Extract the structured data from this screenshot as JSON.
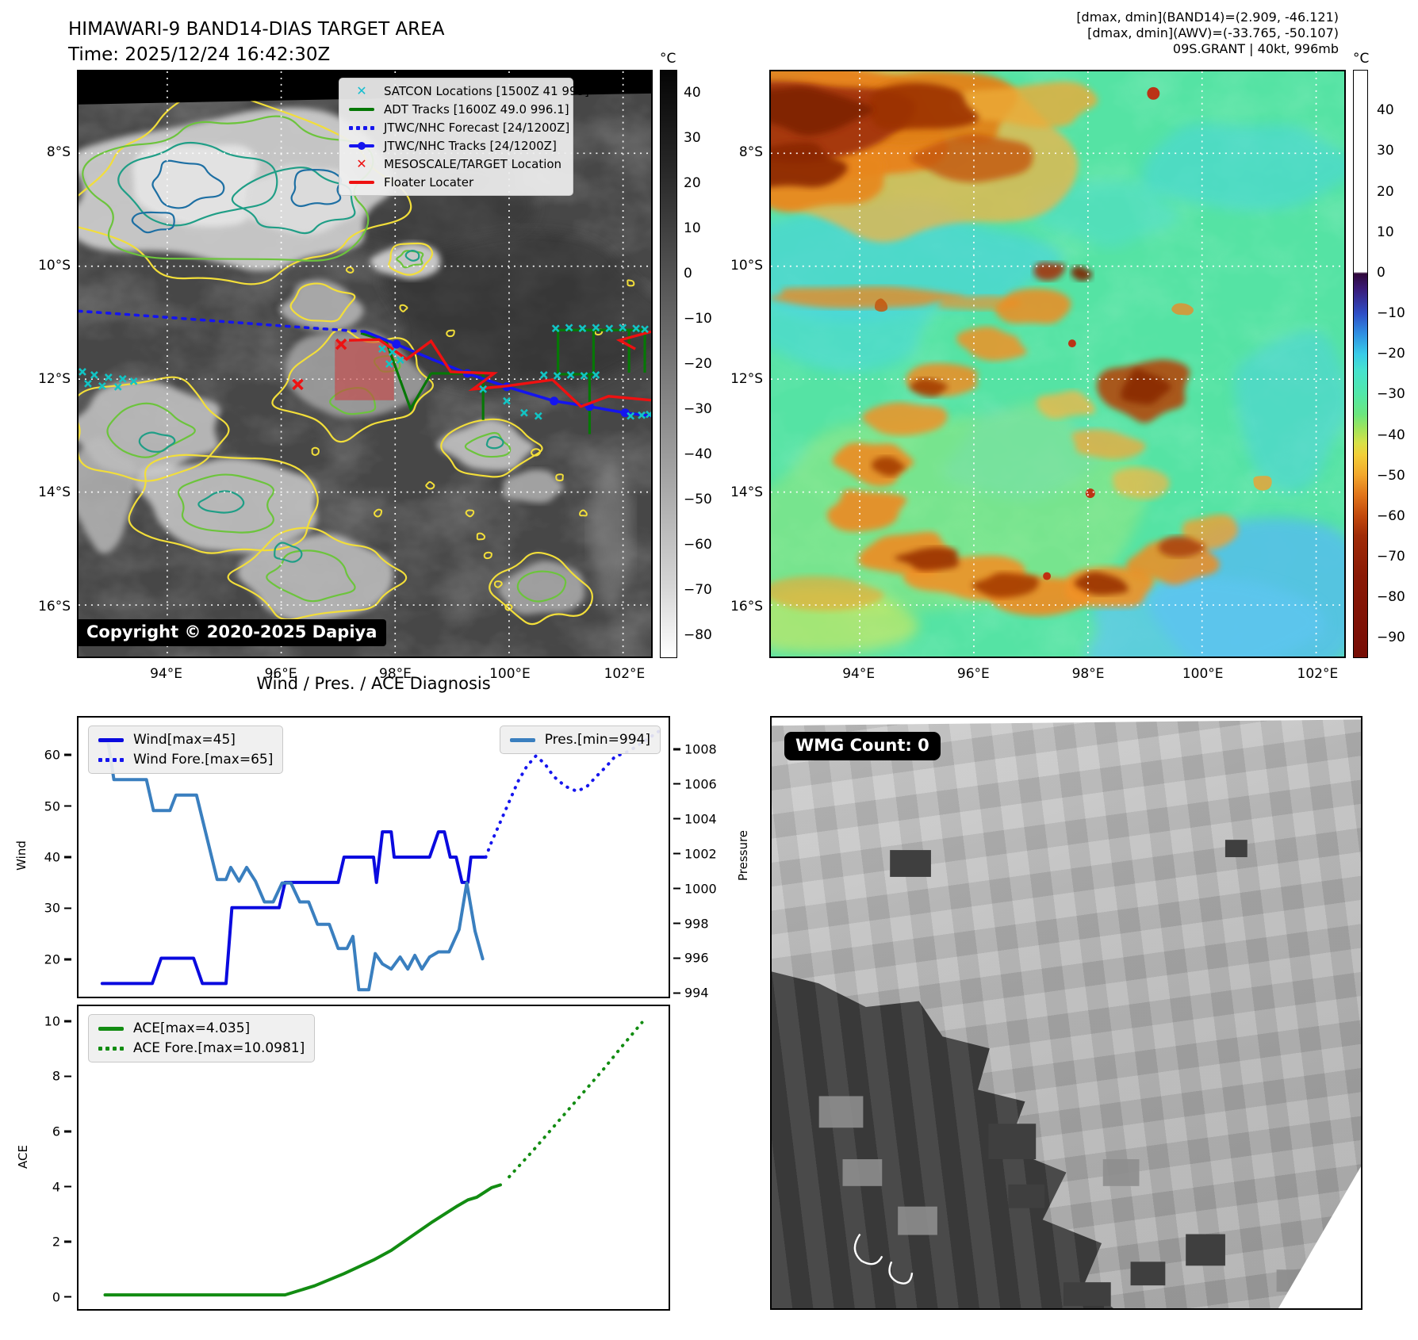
{
  "header": {
    "title": "HIMAWARI-9 BAND14-DIAS TARGET AREA",
    "time": "Time: 2025/12/24 16:42:30Z",
    "info_lines": [
      "[dmax, dmin](BAND14)=(2.909, -46.121)",
      "[dmax, dmin](AWV)=(-33.765, -50.107)",
      "09S.GRANT | 40kt, 996mb"
    ]
  },
  "band14_map": {
    "legend": [
      {
        "label": "SATCON Locations [1500Z 41 993]",
        "marker": "x-marker-icon",
        "color": "#17becf"
      },
      {
        "label": "ADT Tracks [1600Z 49.0 996.1]",
        "marker": "solid-line-icon",
        "color": "#067806"
      },
      {
        "label": "JTWC/NHC Forecast [24/1200Z]",
        "marker": "dotted-line-icon",
        "color": "#1515ee"
      },
      {
        "label": "JTWC/NHC Tracks [24/1200Z]",
        "marker": "line-with-dot-icon",
        "color": "#1515ee"
      },
      {
        "label": "MESOSCALE/TARGET Location",
        "marker": "x-marker-icon",
        "color": "#ee1111"
      },
      {
        "label": "Floater Locater",
        "marker": "solid-line-icon",
        "color": "#ee1111"
      }
    ],
    "copyright": "Copyright © 2020-2025 Dapiya",
    "x_tick_labels": [
      "94°E",
      "96°E",
      "98°E",
      "100°E",
      "102°E"
    ],
    "y_tick_labels": [
      "8°S",
      "10°S",
      "12°S",
      "14°S",
      "16°S"
    ],
    "colorbar": {
      "unit": "°C",
      "tick_labels": [
        "40",
        "30",
        "20",
        "10",
        "0",
        "−10",
        "−20",
        "−30",
        "−40",
        "−50",
        "−60",
        "−70",
        "−80"
      ]
    }
  },
  "awv_map": {
    "x_tick_labels": [
      "94°E",
      "96°E",
      "98°E",
      "100°E",
      "102°E"
    ],
    "y_tick_labels": [
      "8°S",
      "10°S",
      "12°S",
      "14°S",
      "16°S"
    ],
    "colorbar": {
      "unit": "°C",
      "tick_labels": [
        "40",
        "30",
        "20",
        "10",
        "0",
        "−10",
        "−20",
        "−30",
        "−40",
        "−50",
        "−60",
        "−70",
        "−80",
        "−90"
      ]
    }
  },
  "wmg": {
    "label": "WMG Count: 0"
  },
  "diagnosis": {
    "title": "Wind / Pres. / ACE Diagnosis",
    "wind_ylabel": "Wind",
    "pressure_ylabel": "Pressure",
    "ace_ylabel": "ACE",
    "wind_tick_labels": [
      "60",
      "50",
      "40",
      "30",
      "20"
    ],
    "pressure_tick_labels": [
      "1008",
      "1006",
      "1004",
      "1002",
      "1000",
      "998",
      "996",
      "994"
    ],
    "ace_tick_labels": [
      "10",
      "8",
      "6",
      "4",
      "2",
      "0"
    ]
  },
  "chart_data": [
    {
      "type": "line",
      "title": "Wind / Pres. / ACE Diagnosis (upper: wind & pressure)",
      "x_note": "time axis shown without tick labels; x given as fraction 0-1 of axis",
      "ylabel_left": "Wind",
      "ylabel_right": "Pressure",
      "ylim_left": [
        12.4,
        67.6
      ],
      "ylim_right": [
        993.7,
        1009.9
      ],
      "yticks_left": [
        60,
        50,
        40,
        30,
        20
      ],
      "yticks_right": [
        1008,
        1006,
        1004,
        1002,
        1000,
        998,
        996,
        994
      ],
      "legend_left": [
        {
          "label": "Wind[max=45]",
          "style": "solid",
          "color": "#0a0adf"
        },
        {
          "label": "Wind Fore.[max=65]",
          "style": "dotted",
          "color": "#1515ee"
        }
      ],
      "legend_right": [
        {
          "label": "Pres.[min=994]",
          "style": "solid",
          "color": "#3a7fbf"
        }
      ],
      "series": [
        {
          "name": "Wind[max=45]",
          "axis": "left",
          "style": "solid",
          "color": "#0a0adf",
          "points": [
            [
              0.04,
              15
            ],
            [
              0.125,
              15
            ],
            [
              0.14,
              20
            ],
            [
              0.195,
              20
            ],
            [
              0.21,
              15
            ],
            [
              0.25,
              15
            ],
            [
              0.26,
              30
            ],
            [
              0.34,
              30
            ],
            [
              0.35,
              35
            ],
            [
              0.44,
              35
            ],
            [
              0.45,
              40
            ],
            [
              0.5,
              40
            ],
            [
              0.505,
              35
            ],
            [
              0.515,
              45
            ],
            [
              0.53,
              45
            ],
            [
              0.535,
              40
            ],
            [
              0.595,
              40
            ],
            [
              0.61,
              45
            ],
            [
              0.62,
              45
            ],
            [
              0.63,
              40
            ],
            [
              0.64,
              40
            ],
            [
              0.65,
              35
            ],
            [
              0.66,
              35
            ],
            [
              0.665,
              40
            ],
            [
              0.69,
              40
            ]
          ]
        },
        {
          "name": "Wind Fore.[max=65]",
          "axis": "left",
          "style": "dotted",
          "color": "#1515ee",
          "points": [
            [
              0.69,
              40
            ],
            [
              0.7,
              43
            ],
            [
              0.715,
              47
            ],
            [
              0.73,
              51
            ],
            [
              0.745,
              55
            ],
            [
              0.76,
              58
            ],
            [
              0.775,
              60
            ],
            [
              0.79,
              58.5
            ],
            [
              0.805,
              56
            ],
            [
              0.825,
              54
            ],
            [
              0.845,
              53
            ],
            [
              0.862,
              54
            ],
            [
              0.878,
              56
            ],
            [
              0.895,
              58
            ],
            [
              0.91,
              60
            ],
            [
              0.925,
              60.5
            ],
            [
              0.94,
              61.5
            ],
            [
              0.96,
              63
            ],
            [
              0.985,
              65
            ]
          ]
        },
        {
          "name": "Pres.[min=994]",
          "axis": "right",
          "style": "solid",
          "color": "#3a7fbf",
          "points": [
            [
              0.035,
              1008.5
            ],
            [
              0.05,
              1008.5
            ],
            [
              0.06,
              1006.3
            ],
            [
              0.115,
              1006.3
            ],
            [
              0.127,
              1004.5
            ],
            [
              0.155,
              1004.5
            ],
            [
              0.165,
              1005.4
            ],
            [
              0.2,
              1005.4
            ],
            [
              0.235,
              1000.5
            ],
            [
              0.25,
              1000.5
            ],
            [
              0.258,
              1001.2
            ],
            [
              0.272,
              1000.4
            ],
            [
              0.285,
              1001.2
            ],
            [
              0.3,
              1000.4
            ],
            [
              0.315,
              999.2
            ],
            [
              0.33,
              999.2
            ],
            [
              0.345,
              1000.3
            ],
            [
              0.36,
              1000.3
            ],
            [
              0.375,
              999.2
            ],
            [
              0.39,
              999.2
            ],
            [
              0.405,
              997.9
            ],
            [
              0.425,
              997.9
            ],
            [
              0.44,
              996.5
            ],
            [
              0.455,
              996.5
            ],
            [
              0.465,
              997.2
            ],
            [
              0.475,
              994.1
            ],
            [
              0.492,
              994.1
            ],
            [
              0.503,
              996.2
            ],
            [
              0.515,
              995.6
            ],
            [
              0.53,
              995.3
            ],
            [
              0.545,
              996.0
            ],
            [
              0.558,
              995.3
            ],
            [
              0.57,
              996.1
            ],
            [
              0.582,
              995.3
            ],
            [
              0.595,
              996.0
            ],
            [
              0.61,
              996.3
            ],
            [
              0.628,
              996.3
            ],
            [
              0.645,
              997.6
            ],
            [
              0.658,
              1000.3
            ],
            [
              0.672,
              997.5
            ],
            [
              0.685,
              995.9
            ]
          ]
        }
      ]
    },
    {
      "type": "line",
      "title": "Wind / Pres. / ACE Diagnosis (lower: ACE)",
      "x_note": "time axis shown without tick labels; x given as fraction 0-1 of axis",
      "ylabel_left": "ACE",
      "ylim_left": [
        -0.5,
        10.6
      ],
      "yticks_left": [
        10,
        8,
        6,
        4,
        2,
        0
      ],
      "legend_left": [
        {
          "label": "ACE[max=4.035]",
          "style": "solid",
          "color": "#128c12"
        },
        {
          "label": "ACE Fore.[max=10.0981]",
          "style": "dotted",
          "color": "#128c12"
        }
      ],
      "series": [
        {
          "name": "ACE[max=4.035]",
          "axis": "left",
          "style": "solid",
          "color": "#128c12",
          "points": [
            [
              0.045,
              0.02
            ],
            [
              0.35,
              0.02
            ],
            [
              0.4,
              0.35
            ],
            [
              0.45,
              0.8
            ],
            [
              0.5,
              1.3
            ],
            [
              0.53,
              1.65
            ],
            [
              0.56,
              2.1
            ],
            [
              0.6,
              2.7
            ],
            [
              0.64,
              3.25
            ],
            [
              0.66,
              3.5
            ],
            [
              0.675,
              3.6
            ],
            [
              0.7,
              3.95
            ],
            [
              0.715,
              4.05
            ]
          ]
        },
        {
          "name": "ACE Fore.[max=10.0981]",
          "axis": "left",
          "style": "dotted",
          "color": "#128c12",
          "points": [
            [
              0.73,
              4.35
            ],
            [
              0.77,
              5.3
            ],
            [
              0.81,
              6.3
            ],
            [
              0.85,
              7.3
            ],
            [
              0.89,
              8.3
            ],
            [
              0.92,
              9.1
            ],
            [
              0.955,
              10.0
            ]
          ]
        }
      ]
    }
  ]
}
